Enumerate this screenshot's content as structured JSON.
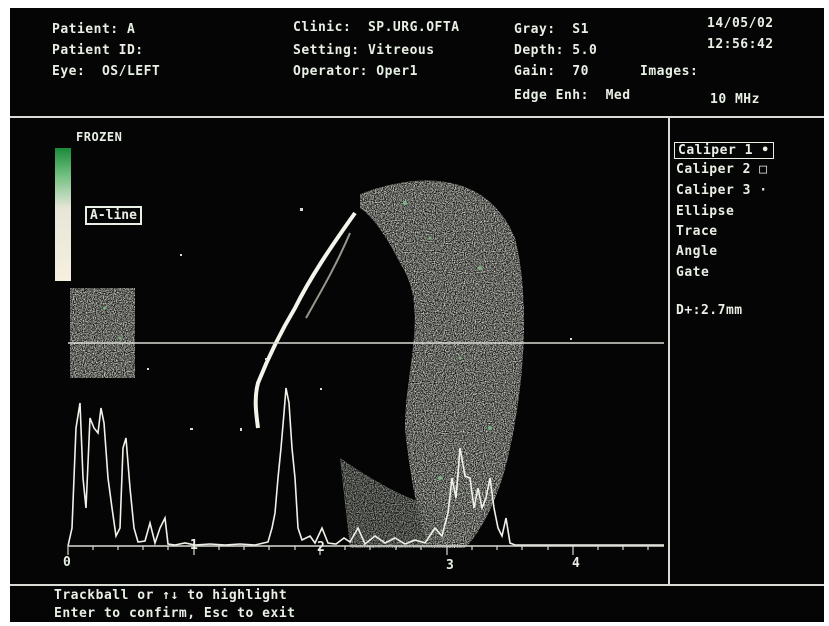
{
  "header": {
    "patient": "Patient: A",
    "patient_id": "Patient ID:",
    "eye": "Eye:  OS/LEFT",
    "clinic": "Clinic:  SP.URG.OFTA",
    "setting": "Setting: Vitreous",
    "operator": "Operator: Oper1",
    "gray": "Gray:  S1",
    "depth": "Depth: 5.0",
    "gain": "Gain:  70",
    "images": "Images:",
    "edge_enh": "Edge Enh:  Med",
    "date": "14/05/02",
    "time": "12:56:42",
    "frequency": "10 MHz"
  },
  "status": {
    "frozen": "FROZEN",
    "a_line": "A-line"
  },
  "menu": {
    "items": [
      "Caliper 1 •",
      "Caliper 2 □",
      "Caliper 3 ·",
      "Ellipse",
      "Trace",
      "Angle",
      "Gate"
    ],
    "measurement": "D+:2.7mm"
  },
  "axis": {
    "ticks": [
      "0",
      "1",
      "2",
      "3",
      "4"
    ]
  },
  "footer": {
    "line1": "Trackball or ↑↓ to highlight",
    "line2": "Enter to confirm, Esc to exit"
  },
  "colors": {
    "background": "#050505",
    "text": "#e8efe4",
    "echo": "#f2f5ea",
    "echo_green": "#7fc48a"
  }
}
